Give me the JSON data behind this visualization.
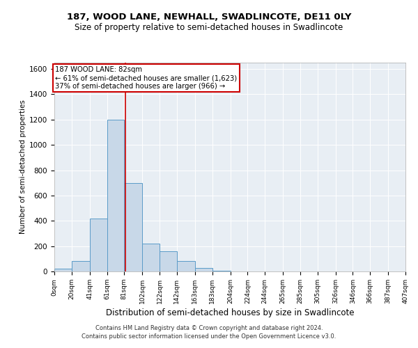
{
  "title": "187, WOOD LANE, NEWHALL, SWADLINCOTE, DE11 0LY",
  "subtitle": "Size of property relative to semi-detached houses in Swadlincote",
  "xlabel": "Distribution of semi-detached houses by size in Swadlincote",
  "ylabel": "Number of semi-detached properties",
  "footer_line1": "Contains HM Land Registry data © Crown copyright and database right 2024.",
  "footer_line2": "Contains public sector information licensed under the Open Government Licence v3.0.",
  "annotation_title": "187 WOOD LANE: 82sqm",
  "annotation_line1": "← 61% of semi-detached houses are smaller (1,623)",
  "annotation_line2": "37% of semi-detached houses are larger (966) →",
  "property_size": 82,
  "bin_edges": [
    0,
    20,
    41,
    61,
    81,
    102,
    122,
    142,
    163,
    183,
    204,
    224,
    244,
    265,
    285,
    305,
    326,
    346,
    366,
    387,
    407
  ],
  "bar_heights": [
    20,
    80,
    420,
    1200,
    700,
    220,
    160,
    80,
    30,
    5,
    2,
    1,
    1,
    0,
    0,
    0,
    0,
    0,
    0,
    0
  ],
  "bar_color": "#c8d8e8",
  "bar_edge_color": "#5a9bc8",
  "line_color": "#cc0000",
  "annotation_box_color": "#cc0000",
  "background_color": "#e8eef4",
  "ylim": [
    0,
    1650
  ],
  "yticks": [
    0,
    200,
    400,
    600,
    800,
    1000,
    1200,
    1400,
    1600
  ],
  "tick_labels": [
    "0sqm",
    "20sqm",
    "41sqm",
    "61sqm",
    "81sqm",
    "102sqm",
    "122sqm",
    "142sqm",
    "163sqm",
    "183sqm",
    "204sqm",
    "224sqm",
    "244sqm",
    "265sqm",
    "285sqm",
    "305sqm",
    "326sqm",
    "346sqm",
    "366sqm",
    "387sqm",
    "407sqm"
  ]
}
